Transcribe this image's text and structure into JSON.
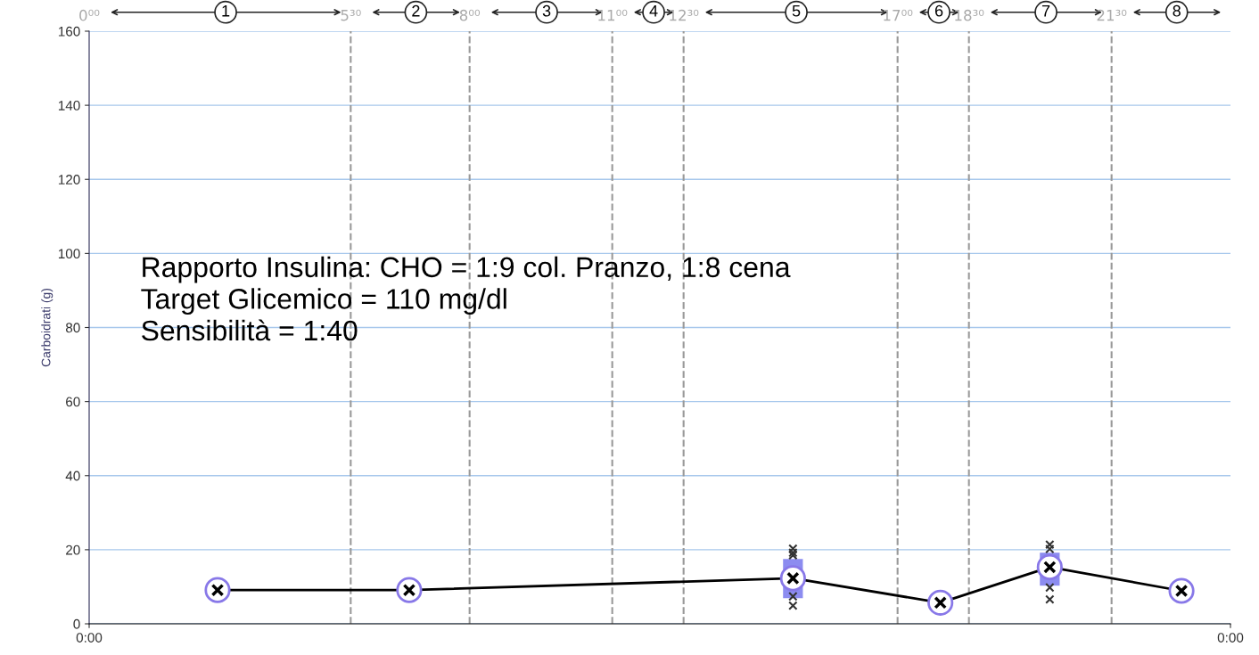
{
  "chart_data": {
    "type": "line",
    "ylabel": "Carboidrati (g)",
    "xlim": [
      0,
      24
    ],
    "xticks": [
      {
        "value": 0,
        "label": "0:00"
      },
      {
        "value": 24,
        "label": "0:00"
      }
    ],
    "ylim": [
      0,
      160
    ],
    "yticks": [
      0,
      20,
      40,
      60,
      80,
      100,
      120,
      140,
      160
    ],
    "x2lim": [
      0,
      24
    ],
    "x2ticks": [
      {
        "value": 0,
        "label": "0⁰⁰"
      },
      {
        "value": 5.5,
        "label": "5³⁰"
      },
      {
        "value": 8,
        "label": "8⁰⁰"
      },
      {
        "value": 11,
        "label": "11⁰⁰"
      },
      {
        "value": 12.5,
        "label": "12³⁰"
      },
      {
        "value": 17,
        "label": "17⁰⁰"
      },
      {
        "value": 18.5,
        "label": "18³⁰"
      },
      {
        "value": 21.5,
        "label": "21³⁰"
      }
    ],
    "grid": "y",
    "marker": "cross",
    "series": [
      {
        "color": "#000000",
        "x": [
          2.7,
          6.73,
          14.8,
          17.9,
          20.2,
          22.97
        ],
        "values": [
          9.1,
          9.1,
          12.3,
          5.7,
          15.3,
          8.9
        ],
        "errors": [
          null,
          null,
          [
            6.9,
            17.5
          ],
          null,
          [
            10.3,
            19.2
          ],
          null
        ]
      },
      {
        "type": "scatter",
        "color": "#333333",
        "x": [
          14.8,
          14.8,
          14.8,
          14.8,
          14.8,
          20.2,
          20.2,
          20.2,
          20.2
        ],
        "values": [
          20.3,
          19.2,
          18.5,
          7.4,
          4.9,
          21.4,
          20.2,
          9.8,
          6.6
        ]
      }
    ],
    "ref_lines": [
      {
        "axis": "x",
        "value": 5.5,
        "line_style": "dashed",
        "color": "#999999"
      },
      {
        "axis": "x",
        "value": 8,
        "line_style": "dashed",
        "color": "#999999"
      },
      {
        "axis": "x",
        "value": 11,
        "line_style": "dashed",
        "color": "#999999"
      },
      {
        "axis": "x",
        "value": 12.5,
        "line_style": "dashed",
        "color": "#999999"
      },
      {
        "axis": "x",
        "value": 17,
        "line_style": "dashed",
        "color": "#999999"
      },
      {
        "axis": "x",
        "value": 18.5,
        "line_style": "dashed",
        "color": "#999999"
      },
      {
        "axis": "x",
        "value": 21.5,
        "line_style": "dashed",
        "color": "#999999"
      }
    ],
    "annotations": [
      "1",
      "2",
      "3",
      "4",
      "5",
      "6",
      "7",
      "8",
      "Rapporto Insulina: CHO = 1:9 col. Pranzo, 1:8 cena\nTarget Glicemico = 110 mg/dl\nSensibilità = 1:40"
    ]
  }
}
